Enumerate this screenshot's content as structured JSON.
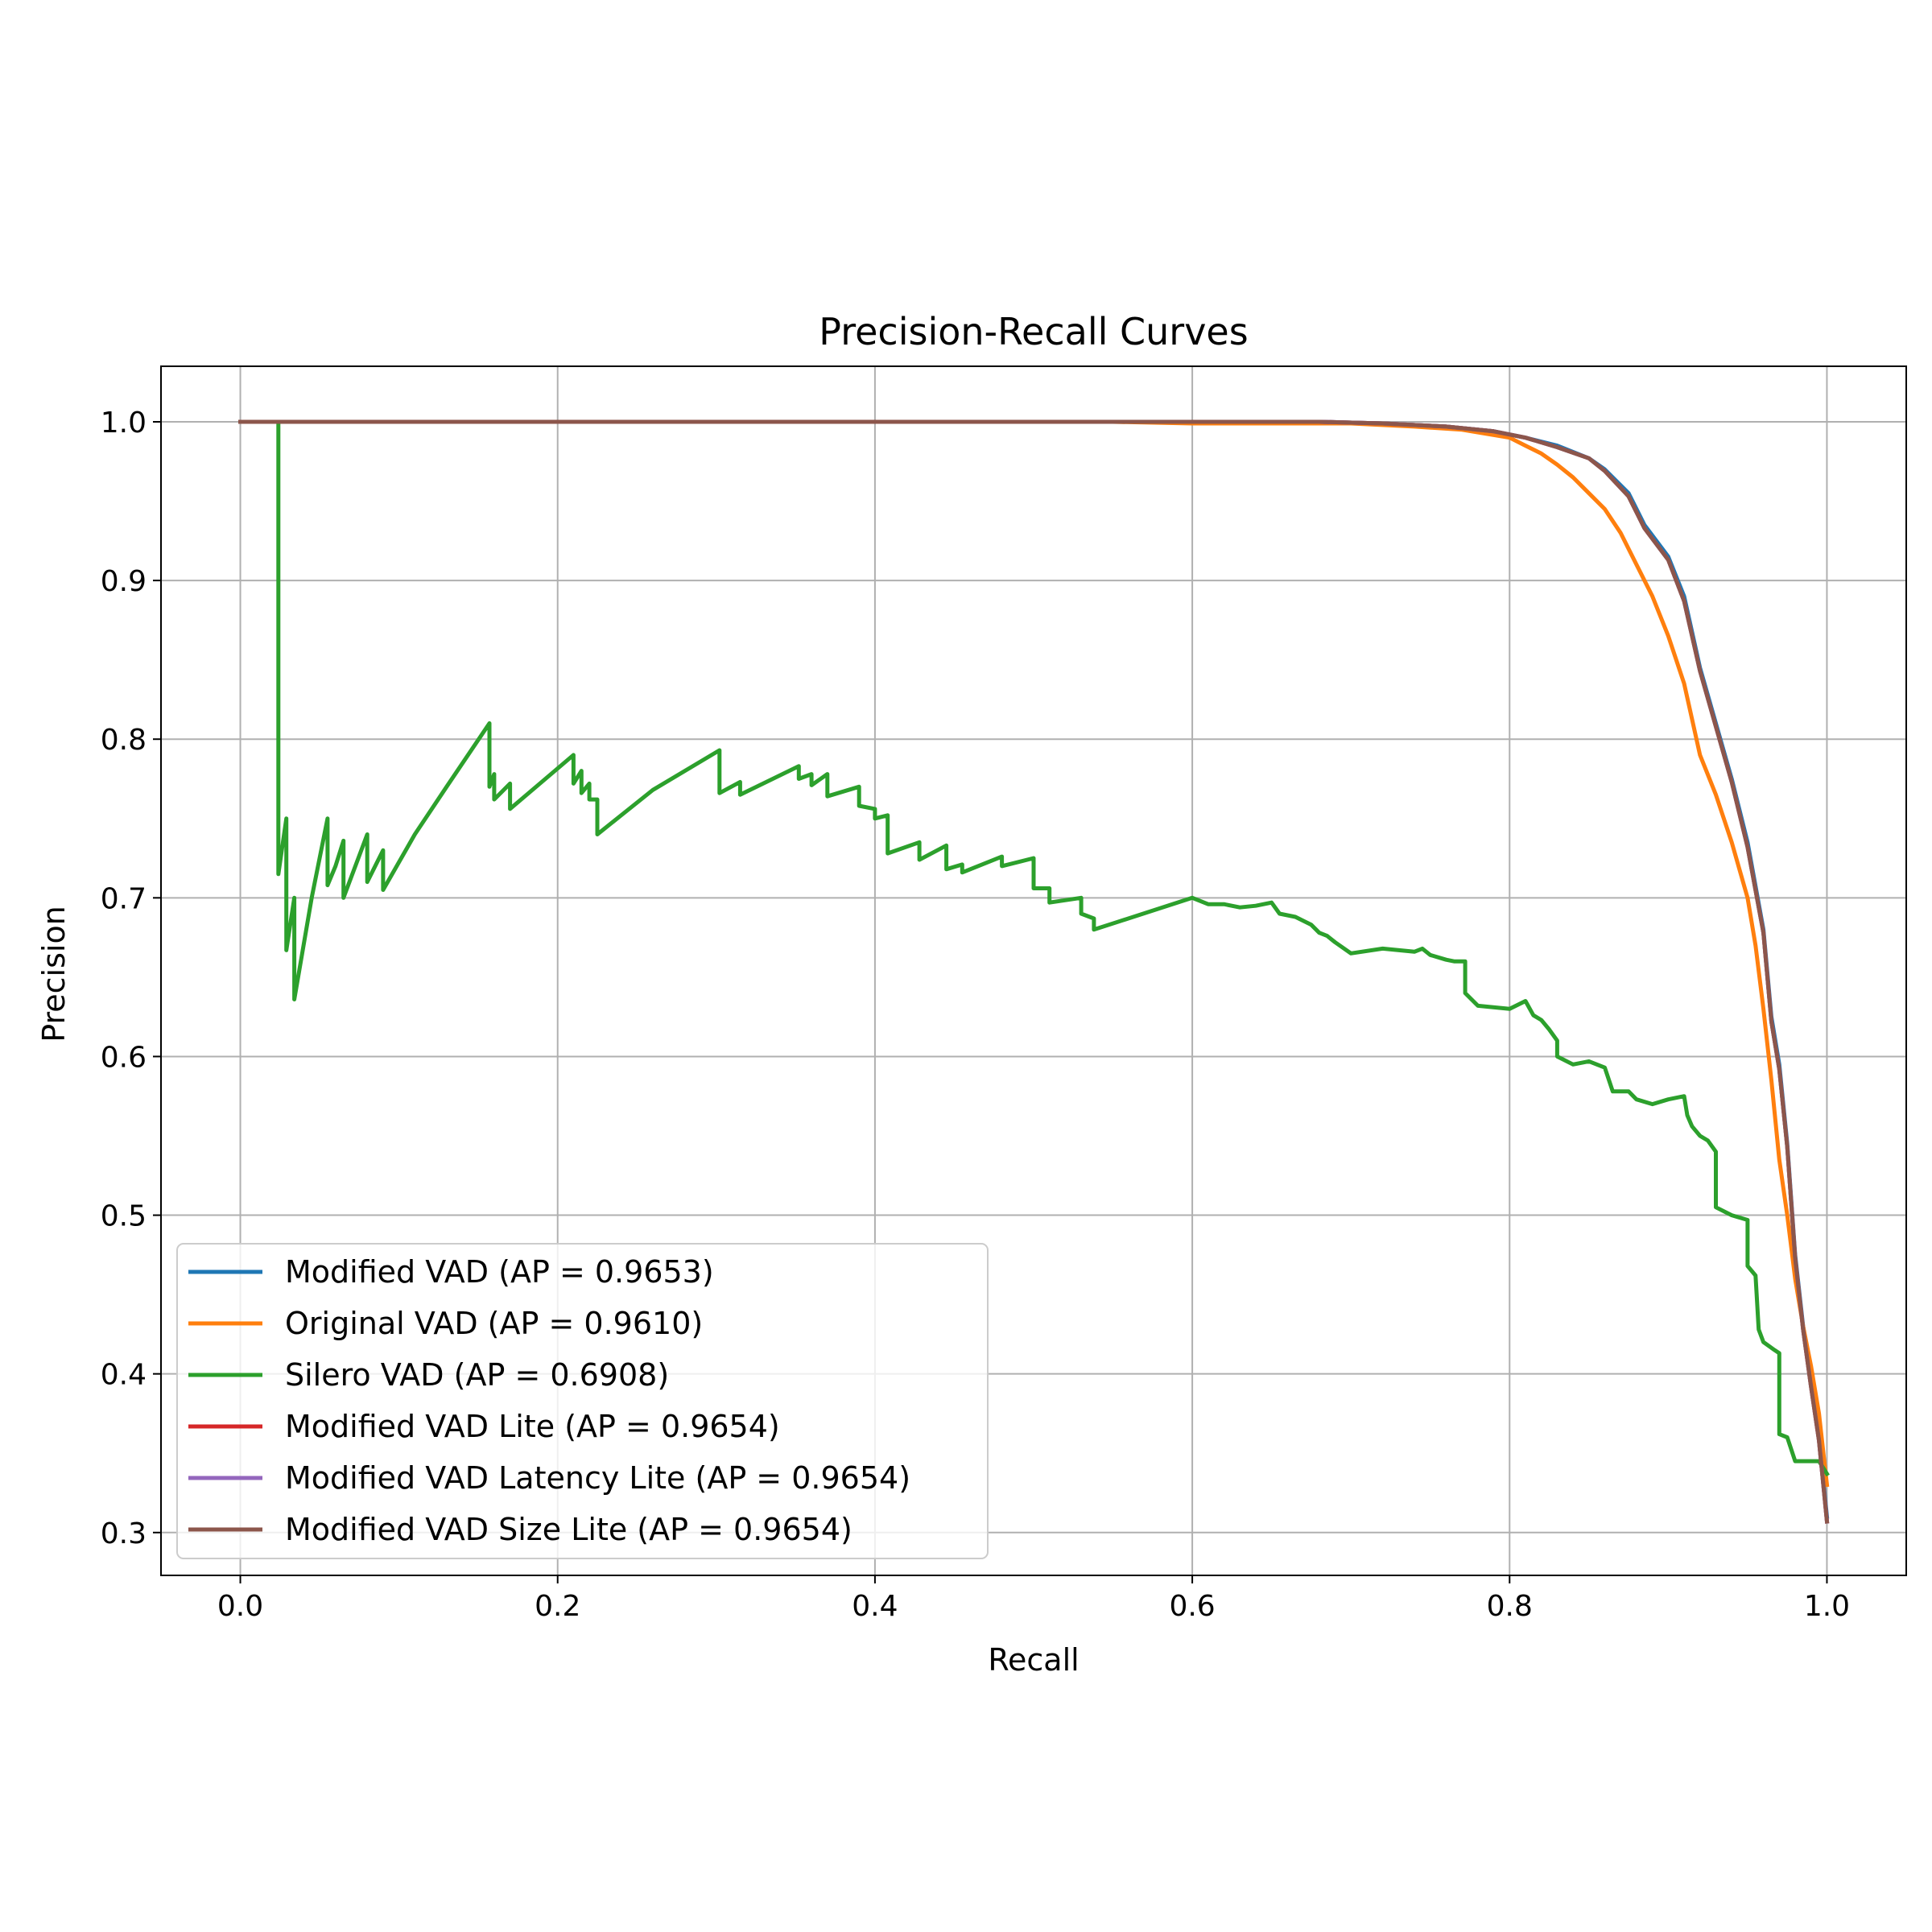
{
  "chart_data": {
    "type": "line",
    "title": "Precision-Recall Curves",
    "xlabel": "Recall",
    "ylabel": "Precision",
    "xlim": [
      -0.05,
      1.05
    ],
    "ylim": [
      0.273,
      1.035
    ],
    "xticks": [
      0.0,
      0.2,
      0.4,
      0.6,
      0.8,
      1.0
    ],
    "xtick_labels": [
      "0.0",
      "0.2",
      "0.4",
      "0.6",
      "0.8",
      "1.0"
    ],
    "yticks": [
      0.3,
      0.4,
      0.5,
      0.6,
      0.7,
      0.8,
      0.9,
      1.0
    ],
    "ytick_labels": [
      "0.3",
      "0.4",
      "0.5",
      "0.6",
      "0.7",
      "0.8",
      "0.9",
      "1.0"
    ],
    "grid": true,
    "legend_position": "lower-left",
    "series": [
      {
        "name": "Modified VAD (AP = 0.9653)",
        "color": "#1f77b4",
        "points": [
          [
            0.0,
            1.0
          ],
          [
            0.55,
            1.0
          ],
          [
            0.68,
            1.0
          ],
          [
            0.72,
            0.999
          ],
          [
            0.76,
            0.997
          ],
          [
            0.79,
            0.994
          ],
          [
            0.81,
            0.99
          ],
          [
            0.83,
            0.985
          ],
          [
            0.85,
            0.977
          ],
          [
            0.86,
            0.97
          ],
          [
            0.875,
            0.955
          ],
          [
            0.885,
            0.935
          ],
          [
            0.9,
            0.915
          ],
          [
            0.91,
            0.89
          ],
          [
            0.92,
            0.845
          ],
          [
            0.93,
            0.81
          ],
          [
            0.94,
            0.775
          ],
          [
            0.95,
            0.735
          ],
          [
            0.96,
            0.68
          ],
          [
            0.965,
            0.625
          ],
          [
            0.97,
            0.595
          ],
          [
            0.975,
            0.545
          ],
          [
            0.98,
            0.475
          ],
          [
            0.985,
            0.43
          ],
          [
            0.99,
            0.395
          ],
          [
            0.995,
            0.36
          ],
          [
            1.0,
            0.31
          ]
        ]
      },
      {
        "name": "Original VAD (AP = 0.9610)",
        "color": "#ff7f0e",
        "points": [
          [
            0.0,
            1.0
          ],
          [
            0.55,
            1.0
          ],
          [
            0.6,
            0.999
          ],
          [
            0.7,
            0.999
          ],
          [
            0.74,
            0.997
          ],
          [
            0.77,
            0.995
          ],
          [
            0.8,
            0.99
          ],
          [
            0.81,
            0.985
          ],
          [
            0.82,
            0.98
          ],
          [
            0.83,
            0.973
          ],
          [
            0.84,
            0.965
          ],
          [
            0.85,
            0.955
          ],
          [
            0.86,
            0.945
          ],
          [
            0.87,
            0.93
          ],
          [
            0.88,
            0.91
          ],
          [
            0.89,
            0.89
          ],
          [
            0.9,
            0.865
          ],
          [
            0.91,
            0.835
          ],
          [
            0.92,
            0.79
          ],
          [
            0.93,
            0.765
          ],
          [
            0.94,
            0.735
          ],
          [
            0.95,
            0.7
          ],
          [
            0.955,
            0.67
          ],
          [
            0.96,
            0.63
          ],
          [
            0.965,
            0.585
          ],
          [
            0.97,
            0.535
          ],
          [
            0.975,
            0.5
          ],
          [
            0.98,
            0.46
          ],
          [
            0.985,
            0.43
          ],
          [
            0.99,
            0.405
          ],
          [
            0.995,
            0.375
          ],
          [
            1.0,
            0.33
          ]
        ]
      },
      {
        "name": "Silero VAD (AP = 0.6908)",
        "color": "#2ca02c",
        "points": [
          [
            0.024,
            1.0
          ],
          [
            0.024,
            0.715
          ],
          [
            0.029,
            0.75
          ],
          [
            0.029,
            0.667
          ],
          [
            0.034,
            0.7
          ],
          [
            0.034,
            0.636
          ],
          [
            0.045,
            0.7
          ],
          [
            0.055,
            0.75
          ],
          [
            0.055,
            0.708
          ],
          [
            0.06,
            0.72
          ],
          [
            0.065,
            0.736
          ],
          [
            0.065,
            0.7
          ],
          [
            0.08,
            0.74
          ],
          [
            0.08,
            0.71
          ],
          [
            0.09,
            0.73
          ],
          [
            0.09,
            0.705
          ],
          [
            0.11,
            0.74
          ],
          [
            0.13,
            0.77
          ],
          [
            0.157,
            0.81
          ],
          [
            0.157,
            0.77
          ],
          [
            0.16,
            0.778
          ],
          [
            0.16,
            0.762
          ],
          [
            0.17,
            0.772
          ],
          [
            0.17,
            0.756
          ],
          [
            0.21,
            0.79
          ],
          [
            0.21,
            0.772
          ],
          [
            0.215,
            0.78
          ],
          [
            0.215,
            0.766
          ],
          [
            0.22,
            0.772
          ],
          [
            0.22,
            0.762
          ],
          [
            0.225,
            0.762
          ],
          [
            0.225,
            0.74
          ],
          [
            0.26,
            0.768
          ],
          [
            0.302,
            0.793
          ],
          [
            0.302,
            0.766
          ],
          [
            0.315,
            0.773
          ],
          [
            0.315,
            0.765
          ],
          [
            0.352,
            0.783
          ],
          [
            0.352,
            0.775
          ],
          [
            0.36,
            0.778
          ],
          [
            0.36,
            0.771
          ],
          [
            0.37,
            0.778
          ],
          [
            0.37,
            0.764
          ],
          [
            0.39,
            0.77
          ],
          [
            0.39,
            0.758
          ],
          [
            0.4,
            0.756
          ],
          [
            0.4,
            0.75
          ],
          [
            0.408,
            0.752
          ],
          [
            0.408,
            0.728
          ],
          [
            0.428,
            0.735
          ],
          [
            0.428,
            0.724
          ],
          [
            0.445,
            0.733
          ],
          [
            0.445,
            0.718
          ],
          [
            0.455,
            0.721
          ],
          [
            0.455,
            0.716
          ],
          [
            0.48,
            0.726
          ],
          [
            0.48,
            0.72
          ],
          [
            0.5,
            0.725
          ],
          [
            0.5,
            0.706
          ],
          [
            0.51,
            0.706
          ],
          [
            0.51,
            0.697
          ],
          [
            0.53,
            0.7
          ],
          [
            0.53,
            0.69
          ],
          [
            0.538,
            0.687
          ],
          [
            0.538,
            0.68
          ],
          [
            0.6,
            0.7
          ],
          [
            0.61,
            0.696
          ],
          [
            0.62,
            0.696
          ],
          [
            0.63,
            0.694
          ],
          [
            0.64,
            0.695
          ],
          [
            0.65,
            0.697
          ],
          [
            0.655,
            0.69
          ],
          [
            0.665,
            0.688
          ],
          [
            0.675,
            0.683
          ],
          [
            0.68,
            0.678
          ],
          [
            0.685,
            0.676
          ],
          [
            0.69,
            0.672
          ],
          [
            0.7,
            0.665
          ],
          [
            0.72,
            0.668
          ],
          [
            0.74,
            0.666
          ],
          [
            0.745,
            0.668
          ],
          [
            0.75,
            0.664
          ],
          [
            0.76,
            0.661
          ],
          [
            0.765,
            0.66
          ],
          [
            0.772,
            0.66
          ],
          [
            0.772,
            0.64
          ],
          [
            0.78,
            0.632
          ],
          [
            0.8,
            0.63
          ],
          [
            0.81,
            0.635
          ],
          [
            0.815,
            0.626
          ],
          [
            0.82,
            0.623
          ],
          [
            0.825,
            0.617
          ],
          [
            0.83,
            0.61
          ],
          [
            0.83,
            0.6
          ],
          [
            0.84,
            0.595
          ],
          [
            0.85,
            0.597
          ],
          [
            0.86,
            0.593
          ],
          [
            0.865,
            0.578
          ],
          [
            0.875,
            0.578
          ],
          [
            0.88,
            0.573
          ],
          [
            0.89,
            0.57
          ],
          [
            0.9,
            0.573
          ],
          [
            0.91,
            0.575
          ],
          [
            0.912,
            0.563
          ],
          [
            0.915,
            0.556
          ],
          [
            0.92,
            0.55
          ],
          [
            0.925,
            0.547
          ],
          [
            0.93,
            0.54
          ],
          [
            0.93,
            0.505
          ],
          [
            0.94,
            0.5
          ],
          [
            0.95,
            0.497
          ],
          [
            0.95,
            0.468
          ],
          [
            0.955,
            0.462
          ],
          [
            0.957,
            0.428
          ],
          [
            0.96,
            0.42
          ],
          [
            0.967,
            0.415
          ],
          [
            0.97,
            0.413
          ],
          [
            0.97,
            0.362
          ],
          [
            0.975,
            0.36
          ],
          [
            0.98,
            0.345
          ],
          [
            0.99,
            0.345
          ],
          [
            0.995,
            0.345
          ],
          [
            1.0,
            0.337
          ]
        ]
      },
      {
        "name": "Modified VAD Lite (AP = 0.9654)",
        "color": "#d62728",
        "points": [
          [
            0.0,
            1.0
          ],
          [
            0.55,
            1.0
          ],
          [
            0.68,
            1.0
          ],
          [
            0.72,
            0.999
          ],
          [
            0.76,
            0.997
          ],
          [
            0.79,
            0.994
          ],
          [
            0.81,
            0.99
          ],
          [
            0.83,
            0.984
          ],
          [
            0.85,
            0.977
          ],
          [
            0.86,
            0.969
          ],
          [
            0.875,
            0.953
          ],
          [
            0.885,
            0.933
          ],
          [
            0.9,
            0.913
          ],
          [
            0.91,
            0.887
          ],
          [
            0.92,
            0.843
          ],
          [
            0.93,
            0.808
          ],
          [
            0.94,
            0.773
          ],
          [
            0.95,
            0.732
          ],
          [
            0.96,
            0.678
          ],
          [
            0.965,
            0.622
          ],
          [
            0.97,
            0.592
          ],
          [
            0.975,
            0.543
          ],
          [
            0.98,
            0.473
          ],
          [
            0.985,
            0.428
          ],
          [
            0.99,
            0.392
          ],
          [
            0.995,
            0.358
          ],
          [
            1.0,
            0.307
          ]
        ]
      },
      {
        "name": "Modified VAD Latency Lite (AP = 0.9654)",
        "color": "#9467bd",
        "points": [
          [
            0.0,
            1.0
          ],
          [
            0.55,
            1.0
          ],
          [
            0.68,
            1.0
          ],
          [
            0.72,
            0.999
          ],
          [
            0.76,
            0.997
          ],
          [
            0.79,
            0.994
          ],
          [
            0.81,
            0.99
          ],
          [
            0.83,
            0.984
          ],
          [
            0.85,
            0.977
          ],
          [
            0.86,
            0.969
          ],
          [
            0.875,
            0.953
          ],
          [
            0.885,
            0.933
          ],
          [
            0.9,
            0.913
          ],
          [
            0.91,
            0.887
          ],
          [
            0.92,
            0.843
          ],
          [
            0.93,
            0.808
          ],
          [
            0.94,
            0.773
          ],
          [
            0.95,
            0.732
          ],
          [
            0.96,
            0.678
          ],
          [
            0.965,
            0.622
          ],
          [
            0.97,
            0.592
          ],
          [
            0.975,
            0.543
          ],
          [
            0.98,
            0.473
          ],
          [
            0.985,
            0.428
          ],
          [
            0.99,
            0.392
          ],
          [
            0.995,
            0.358
          ],
          [
            1.0,
            0.307
          ]
        ]
      },
      {
        "name": "Modified VAD Size Lite (AP = 0.9654)",
        "color": "#8c564b",
        "points": [
          [
            0.0,
            1.0
          ],
          [
            0.55,
            1.0
          ],
          [
            0.68,
            1.0
          ],
          [
            0.72,
            0.999
          ],
          [
            0.76,
            0.997
          ],
          [
            0.79,
            0.994
          ],
          [
            0.81,
            0.99
          ],
          [
            0.83,
            0.984
          ],
          [
            0.85,
            0.977
          ],
          [
            0.86,
            0.969
          ],
          [
            0.875,
            0.953
          ],
          [
            0.885,
            0.933
          ],
          [
            0.9,
            0.913
          ],
          [
            0.91,
            0.887
          ],
          [
            0.92,
            0.843
          ],
          [
            0.93,
            0.808
          ],
          [
            0.94,
            0.773
          ],
          [
            0.95,
            0.732
          ],
          [
            0.96,
            0.678
          ],
          [
            0.965,
            0.622
          ],
          [
            0.97,
            0.592
          ],
          [
            0.975,
            0.543
          ],
          [
            0.98,
            0.473
          ],
          [
            0.985,
            0.428
          ],
          [
            0.99,
            0.392
          ],
          [
            0.995,
            0.358
          ],
          [
            1.0,
            0.307
          ]
        ]
      }
    ]
  }
}
